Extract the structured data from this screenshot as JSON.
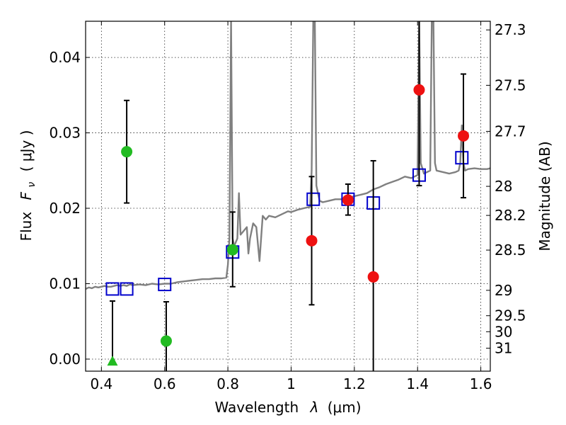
{
  "chart_data": {
    "type": "scatter",
    "xlabel_prefix": "Wavelength",
    "xlabel_symbol": "λ",
    "xlabel_unit": "(μm)",
    "ylabel_prefix": "Flux",
    "ylabel_symbol": "F",
    "ylabel_subscript": "ν",
    "ylabel_unit": "( μJy )",
    "y2label": "Magnitude (AB)",
    "xlim": [
      0.35,
      1.63
    ],
    "ylim": [
      -0.0016,
      0.0448
    ],
    "grid": true,
    "x_ticks": [
      0.4,
      0.6,
      0.8,
      1.0,
      1.2,
      1.4,
      1.6
    ],
    "x_tick_labels": [
      "0.4",
      "0.6",
      "0.8",
      "1",
      "1.2",
      "1.4",
      "1.6"
    ],
    "y_ticks": [
      0.0,
      0.01,
      0.02,
      0.03,
      0.04
    ],
    "y_tick_labels": [
      "0.00",
      "0.01",
      "0.02",
      "0.03",
      "0.04"
    ],
    "y2_ticks": [
      {
        "mag": 27.3,
        "label": "27.3"
      },
      {
        "mag": 27.5,
        "label": "27.5"
      },
      {
        "mag": 27.7,
        "label": "27.7"
      },
      {
        "mag": 28.0,
        "label": "28"
      },
      {
        "mag": 28.2,
        "label": "28.2"
      },
      {
        "mag": 28.5,
        "label": "28.5"
      },
      {
        "mag": 29.0,
        "label": "29"
      },
      {
        "mag": 29.5,
        "label": "29.5"
      },
      {
        "mag": 30.0,
        "label": "30"
      },
      {
        "mag": 31.0,
        "label": "31"
      }
    ],
    "series": [
      {
        "name": "model-spectrum",
        "kind": "line",
        "color": "#808080",
        "points": [
          [
            0.35,
            0.0093
          ],
          [
            0.36,
            0.0095
          ],
          [
            0.37,
            0.0094
          ],
          [
            0.38,
            0.0096
          ],
          [
            0.39,
            0.0095
          ],
          [
            0.4,
            0.0096
          ],
          [
            0.41,
            0.0097
          ],
          [
            0.42,
            0.0096
          ],
          [
            0.43,
            0.0096
          ],
          [
            0.44,
            0.0097
          ],
          [
            0.45,
            0.0098
          ],
          [
            0.46,
            0.0097
          ],
          [
            0.47,
            0.0098
          ],
          [
            0.48,
            0.0097
          ],
          [
            0.49,
            0.0099
          ],
          [
            0.5,
            0.0098
          ],
          [
            0.52,
            0.0099
          ],
          [
            0.54,
            0.0098
          ],
          [
            0.56,
            0.01
          ],
          [
            0.58,
            0.0099
          ],
          [
            0.6,
            0.01
          ],
          [
            0.62,
            0.01
          ],
          [
            0.64,
            0.0102
          ],
          [
            0.66,
            0.0103
          ],
          [
            0.68,
            0.0104
          ],
          [
            0.7,
            0.0105
          ],
          [
            0.72,
            0.0106
          ],
          [
            0.74,
            0.0106
          ],
          [
            0.76,
            0.0107
          ],
          [
            0.78,
            0.0107
          ],
          [
            0.795,
            0.0108
          ],
          [
            0.8,
            0.0125
          ],
          [
            0.805,
            0.016
          ],
          [
            0.81,
            0.045
          ],
          [
            0.815,
            0.016
          ],
          [
            0.82,
            0.015
          ],
          [
            0.83,
            0.016
          ],
          [
            0.835,
            0.022
          ],
          [
            0.84,
            0.0165
          ],
          [
            0.85,
            0.017
          ],
          [
            0.86,
            0.0175
          ],
          [
            0.865,
            0.014
          ],
          [
            0.87,
            0.016
          ],
          [
            0.88,
            0.018
          ],
          [
            0.89,
            0.0175
          ],
          [
            0.9,
            0.013
          ],
          [
            0.91,
            0.019
          ],
          [
            0.92,
            0.0185
          ],
          [
            0.93,
            0.019
          ],
          [
            0.95,
            0.0188
          ],
          [
            0.97,
            0.0192
          ],
          [
            0.99,
            0.0196
          ],
          [
            1.0,
            0.0195
          ],
          [
            1.02,
            0.0198
          ],
          [
            1.04,
            0.02
          ],
          [
            1.06,
            0.0202
          ],
          [
            1.065,
            0.025
          ],
          [
            1.07,
            0.045
          ],
          [
            1.075,
            0.045
          ],
          [
            1.08,
            0.023
          ],
          [
            1.09,
            0.021
          ],
          [
            1.1,
            0.0208
          ],
          [
            1.12,
            0.021
          ],
          [
            1.14,
            0.0212
          ],
          [
            1.16,
            0.0212
          ],
          [
            1.18,
            0.0214
          ],
          [
            1.2,
            0.0216
          ],
          [
            1.22,
            0.0218
          ],
          [
            1.24,
            0.022
          ],
          [
            1.26,
            0.0225
          ],
          [
            1.28,
            0.0228
          ],
          [
            1.3,
            0.0232
          ],
          [
            1.32,
            0.0235
          ],
          [
            1.34,
            0.0238
          ],
          [
            1.36,
            0.0242
          ],
          [
            1.38,
            0.024
          ],
          [
            1.4,
            0.0244
          ],
          [
            1.405,
            0.045
          ],
          [
            1.41,
            0.026
          ],
          [
            1.42,
            0.0246
          ],
          [
            1.43,
            0.0248
          ],
          [
            1.44,
            0.025
          ],
          [
            1.445,
            0.045
          ],
          [
            1.45,
            0.045
          ],
          [
            1.455,
            0.026
          ],
          [
            1.46,
            0.025
          ],
          [
            1.48,
            0.0248
          ],
          [
            1.5,
            0.0246
          ],
          [
            1.52,
            0.0248
          ],
          [
            1.53,
            0.025
          ],
          [
            1.535,
            0.026
          ],
          [
            1.54,
            0.031
          ],
          [
            1.545,
            0.026
          ],
          [
            1.55,
            0.025
          ],
          [
            1.56,
            0.0252
          ],
          [
            1.58,
            0.0253
          ],
          [
            1.6,
            0.0252
          ],
          [
            1.62,
            0.0252
          ],
          [
            1.63,
            0.0253
          ]
        ]
      },
      {
        "name": "model-photometry",
        "kind": "open-square",
        "color": "#0000cc",
        "points": [
          {
            "x": 0.435,
            "y": 0.0093
          },
          {
            "x": 0.48,
            "y": 0.0093
          },
          {
            "x": 0.6,
            "y": 0.0099
          },
          {
            "x": 0.815,
            "y": 0.0142
          },
          {
            "x": 1.07,
            "y": 0.0212
          },
          {
            "x": 1.18,
            "y": 0.0212
          },
          {
            "x": 1.26,
            "y": 0.0207
          },
          {
            "x": 1.405,
            "y": 0.0244
          },
          {
            "x": 1.54,
            "y": 0.0267
          }
        ]
      },
      {
        "name": "observed-optical",
        "kind": "filled-circle",
        "color": "#22bb22",
        "points": [
          {
            "x": 0.48,
            "y": 0.0275,
            "err_lo": 0.0068,
            "err_hi": 0.0068
          },
          {
            "x": 0.605,
            "y": 0.0024,
            "err_lo": 0.0052,
            "err_hi": 0.0052
          },
          {
            "x": 0.815,
            "y": 0.0145,
            "err_lo": 0.0049,
            "err_hi": 0.005
          }
        ]
      },
      {
        "name": "observed-optical-upper-limit",
        "kind": "filled-triangle",
        "color": "#22bb22",
        "points": [
          {
            "x": 0.435,
            "y": -0.0003,
            "err_lo": 0.0,
            "err_hi": 0.008
          }
        ]
      },
      {
        "name": "observed-near-ir",
        "kind": "filled-circle",
        "color": "#ee1111",
        "points": [
          {
            "x": 1.065,
            "y": 0.0157,
            "err_lo": 0.0085,
            "err_hi": 0.0085
          },
          {
            "x": 1.18,
            "y": 0.0211,
            "err_lo": 0.002,
            "err_hi": 0.0021
          },
          {
            "x": 1.26,
            "y": 0.0109,
            "err_lo": 0.0154,
            "err_hi": 0.0154
          },
          {
            "x": 1.405,
            "y": 0.0357,
            "err_lo": 0.0127,
            "err_hi": 0.0125
          },
          {
            "x": 1.545,
            "y": 0.0296,
            "err_lo": 0.0082,
            "err_hi": 0.0082
          }
        ]
      }
    ]
  }
}
